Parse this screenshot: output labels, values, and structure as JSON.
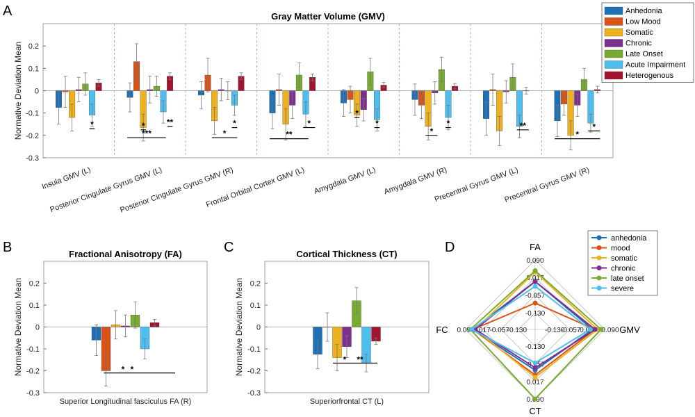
{
  "colors": {
    "Anhedonia": "#1f6fb5",
    "Low Mood": "#d95319",
    "Somatic": "#edb120",
    "Chronic": "#7e2f8e",
    "Late Onset": "#77ac30",
    "Acute Impairment": "#4dbeee",
    "Heterogenous": "#a2142f"
  },
  "panels": {
    "a": "A",
    "b": "B",
    "c": "C",
    "d": "D"
  },
  "chart_data": [
    {
      "id": "gmv",
      "type": "bar",
      "title": "Gray Matter Volume (GMV)",
      "ylabel": "Normative Deviation Mean",
      "ylim": [
        -0.3,
        0.3
      ],
      "yticks": [
        "0.2",
        "0.1",
        "0",
        "-0.1",
        "-0.2",
        "-0.3"
      ],
      "legend": [
        "Anhedonia",
        "Low Mood",
        "Somatic",
        "Chronic",
        "Late Onset",
        "Acute Impairment",
        "Heterogenous"
      ],
      "categories": [
        "Insula GMV (L)",
        "Posterior Cingulate Gyrus GMV (L)",
        "Posterior Cingulate Gyrus GMV (R)",
        "Frontal Orbital Cortex GMV (L)",
        "Amygdala GMV (L)",
        "Amygdala GMV (R)",
        "Precentral Gyrus GMV (L)",
        "Precentral Gyrus GMV (R)"
      ],
      "series": [
        {
          "name": "Anhedonia",
          "values": [
            -0.075,
            -0.03,
            -0.02,
            -0.1,
            -0.055,
            -0.04,
            -0.125,
            -0.135
          ],
          "err": [
            0.075,
            0.065,
            0.06,
            0.07,
            0.06,
            0.07,
            0.075,
            0.07
          ]
        },
        {
          "name": "Low Mood",
          "values": [
            -0.005,
            0.13,
            0.07,
            0.005,
            -0.04,
            -0.065,
            0.005,
            -0.06
          ],
          "err": [
            0.07,
            0.08,
            0.075,
            0.07,
            0.06,
            0.06,
            0.07,
            0.05
          ]
        },
        {
          "name": "Somatic",
          "values": [
            -0.12,
            -0.165,
            -0.135,
            -0.15,
            -0.11,
            -0.16,
            -0.18,
            -0.2
          ],
          "err": [
            0.06,
            0.06,
            0.06,
            0.07,
            0.05,
            0.06,
            0.065,
            0.065
          ]
        },
        {
          "name": "Chronic",
          "values": [
            0.005,
            0.005,
            0.005,
            -0.065,
            -0.085,
            -0.01,
            -0.005,
            -0.065
          ],
          "err": [
            0.055,
            0.06,
            0.05,
            0.06,
            0.05,
            0.05,
            0.05,
            0.05
          ]
        },
        {
          "name": "Late Onset",
          "values": [
            0.03,
            0.02,
            0.0,
            0.07,
            0.085,
            0.095,
            0.06,
            0.05
          ],
          "err": [
            0.05,
            0.045,
            0.04,
            0.055,
            0.06,
            0.055,
            0.06,
            0.05
          ]
        },
        {
          "name": "Acute Impairment",
          "values": [
            -0.11,
            -0.095,
            -0.065,
            -0.105,
            -0.13,
            -0.12,
            -0.16,
            -0.145
          ],
          "err": [
            0.05,
            0.05,
            0.045,
            0.055,
            0.05,
            0.055,
            0.05,
            0.04
          ]
        },
        {
          "name": "Heterogenous",
          "values": [
            0.035,
            0.065,
            0.065,
            0.06,
            0.025,
            0.02,
            0.0,
            0.005
          ],
          "err": [
            0.015,
            0.015,
            0.015,
            0.015,
            0.012,
            0.012,
            0.015,
            0.015
          ]
        }
      ],
      "annotations": [
        "*",
        "*",
        "***",
        "**",
        "*",
        "*",
        "**",
        "*",
        "*",
        "*",
        "*",
        "*",
        "**",
        "*",
        "*"
      ]
    },
    {
      "id": "fa",
      "type": "bar",
      "title": "Fractional Anisotropy (FA)",
      "ylabel": "Normative Deviation Mean",
      "ylim": [
        -0.3,
        0.3
      ],
      "yticks": [
        "0.2",
        "0.1",
        "0",
        "-0.1",
        "-0.2",
        "-0.3"
      ],
      "categories": [
        "Superior Longitudinal fasciculus FA (R)"
      ],
      "series": [
        {
          "name": "Anhedonia",
          "values": [
            -0.06
          ],
          "err": [
            0.07
          ]
        },
        {
          "name": "Low Mood",
          "values": [
            -0.2
          ],
          "err": [
            0.07
          ]
        },
        {
          "name": "Somatic",
          "values": [
            0.01
          ],
          "err": [
            0.065
          ]
        },
        {
          "name": "Chronic",
          "values": [
            0.005
          ],
          "err": [
            0.05
          ]
        },
        {
          "name": "Late Onset",
          "values": [
            0.055
          ],
          "err": [
            0.06
          ]
        },
        {
          "name": "Acute Impairment",
          "values": [
            -0.1
          ],
          "err": [
            0.045
          ]
        },
        {
          "name": "Heterogenous",
          "values": [
            0.02
          ],
          "err": [
            0.015
          ]
        }
      ],
      "annotations": [
        "*",
        "*"
      ]
    },
    {
      "id": "ct",
      "type": "bar",
      "title": "Cortical Thickness (CT)",
      "ylabel": "Normative Deviation Mean",
      "ylim": [
        -0.3,
        0.3
      ],
      "yticks": [
        "0.2",
        "0.1",
        "0",
        "-0.1",
        "-0.2",
        "-0.3"
      ],
      "categories": [
        "Superiorfrontal CT (L)"
      ],
      "series": [
        {
          "name": "Anhedonia",
          "values": [
            -0.125
          ],
          "err": [
            0.065
          ]
        },
        {
          "name": "Low Mood",
          "values": [
            0.0
          ],
          "err": [
            0.065
          ]
        },
        {
          "name": "Somatic",
          "values": [
            -0.14
          ],
          "err": [
            0.06
          ]
        },
        {
          "name": "Chronic",
          "values": [
            -0.09
          ],
          "err": [
            0.05
          ]
        },
        {
          "name": "Late Onset",
          "values": [
            0.12
          ],
          "err": [
            0.06
          ]
        },
        {
          "name": "Acute Impairment",
          "values": [
            -0.165
          ],
          "err": [
            0.04
          ]
        },
        {
          "name": "Heterogenous",
          "values": [
            -0.065
          ],
          "err": [
            0.015
          ]
        }
      ],
      "annotations": [
        "*",
        "**"
      ]
    },
    {
      "id": "radar",
      "type": "radar",
      "axes": [
        "FA",
        "GMV",
        "CT",
        "FC"
      ],
      "rings": [
        "0.090",
        "0.017",
        "-0.057",
        "-0.130"
      ],
      "ring_values": [
        0.09,
        0.017,
        -0.057,
        -0.13
      ],
      "rmin": -0.2,
      "rmax": 0.09,
      "fc_labels": [
        "0.090",
        "0.017",
        "-0.057",
        "-0.130"
      ],
      "gmv_labels": [
        "-0.130",
        "-0.057",
        "0.017",
        "0.090"
      ],
      "legend": [
        "anhedonia",
        "mood",
        "somatic",
        "chronic",
        "late onset",
        "severe"
      ],
      "series": [
        {
          "name": "anhedonia",
          "color": "#1f6fb5",
          "values": [
            0.0,
            0.04,
            -0.03,
            0.06
          ]
        },
        {
          "name": "mood",
          "color": "#d95319",
          "values": [
            -0.09,
            0.05,
            -0.01,
            0.06
          ]
        },
        {
          "name": "somatic",
          "color": "#edb120",
          "values": [
            0.04,
            0.06,
            0.0,
            0.05
          ]
        },
        {
          "name": "chronic",
          "color": "#7e2f8e",
          "values": [
            0.0,
            0.05,
            -0.04,
            0.05
          ]
        },
        {
          "name": "late onset",
          "color": "#77ac30",
          "values": [
            0.045,
            0.075,
            0.09,
            0.07
          ]
        },
        {
          "name": "severe",
          "color": "#4dbeee",
          "values": [
            -0.02,
            0.03,
            -0.06,
            0.065
          ]
        }
      ]
    }
  ]
}
